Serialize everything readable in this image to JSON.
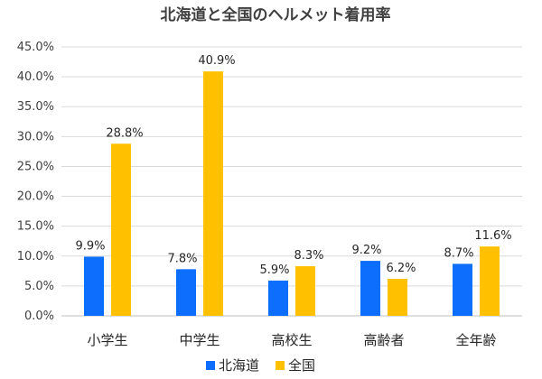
{
  "chart_data": {
    "type": "bar",
    "title": "北海道と全国のヘルメット着用率",
    "categories": [
      "小学生",
      "中学生",
      "高校生",
      "高齢者",
      "全年齢"
    ],
    "series": [
      {
        "name": "北海道",
        "color": "#0d6efd",
        "values": [
          9.9,
          7.8,
          5.9,
          9.2,
          8.7
        ],
        "labels": [
          "9.9%",
          "7.8%",
          "5.9%",
          "9.2%",
          "8.7%"
        ]
      },
      {
        "name": "全国",
        "color": "#ffc000",
        "values": [
          28.8,
          40.9,
          8.3,
          6.2,
          11.6
        ],
        "labels": [
          "28.8%",
          "40.9%",
          "8.3%",
          "6.2%",
          "11.6%"
        ]
      }
    ],
    "ylim": [
      0,
      45
    ],
    "yticks": [
      0,
      5,
      10,
      15,
      20,
      25,
      30,
      35,
      40,
      45
    ],
    "ytick_labels": [
      "0.0%",
      "5.0%",
      "10.0%",
      "15.0%",
      "20.0%",
      "25.0%",
      "30.0%",
      "35.0%",
      "40.0%",
      "45.0%"
    ],
    "grid": true,
    "legend_position": "bottom"
  }
}
